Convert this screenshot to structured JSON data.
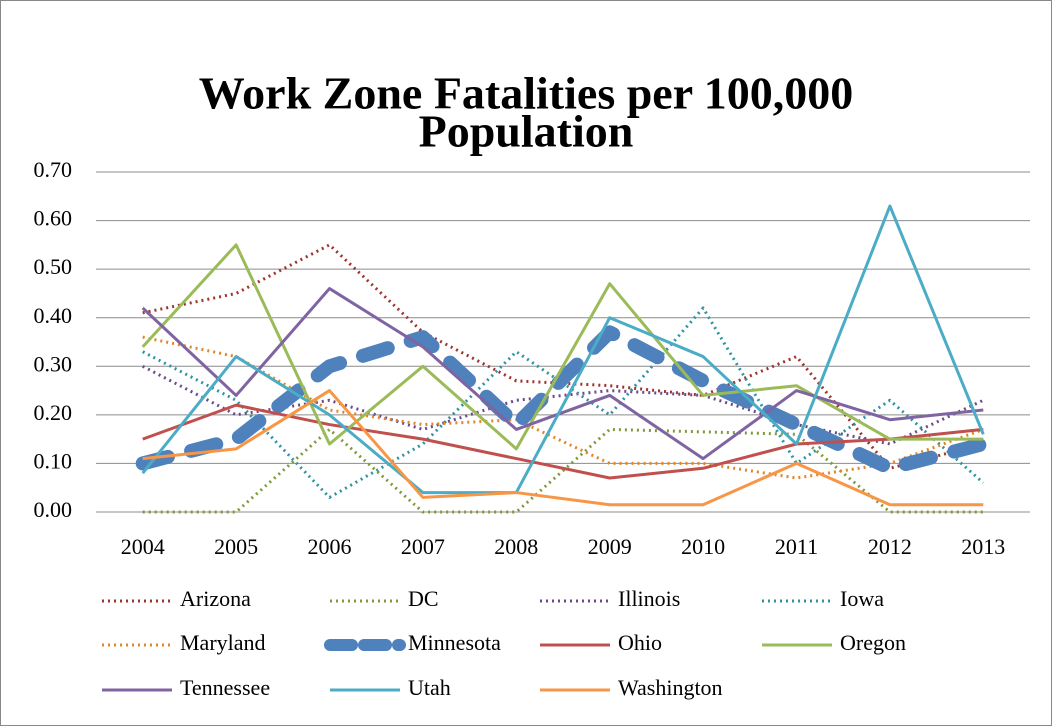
{
  "chart_data": {
    "type": "line",
    "title": [
      "Work Zone Fatalities per 100,000",
      "Population"
    ],
    "categories": [
      "2004",
      "2005",
      "2006",
      "2007",
      "2008",
      "2009",
      "2010",
      "2011",
      "2012",
      "2013"
    ],
    "ylim": [
      0,
      0.7
    ],
    "yticks": [
      {
        "value": 0,
        "label": "0.00"
      },
      {
        "value": 0.1,
        "label": "0.10"
      },
      {
        "value": 0.2,
        "label": "0.20"
      },
      {
        "value": 0.3,
        "label": "0.30"
      },
      {
        "value": 0.4,
        "label": "0.40"
      },
      {
        "value": 0.5,
        "label": "0.50"
      },
      {
        "value": 0.6,
        "label": "0.60"
      },
      {
        "value": 0.7,
        "label": "0.70"
      }
    ],
    "grid": true,
    "legend": "bottom",
    "series": [
      {
        "name": "Arizona",
        "color": "#a0332f",
        "dash": "dotted",
        "values": [
          0.41,
          0.45,
          0.55,
          0.37,
          0.27,
          0.26,
          0.24,
          0.32,
          0.09,
          0.14
        ]
      },
      {
        "name": "DC",
        "color": "#7f9a3b",
        "dash": "dotted",
        "values": [
          0,
          0,
          0.17,
          0,
          0,
          0.17,
          0.165,
          0.16,
          0,
          0
        ]
      },
      {
        "name": "Illinois",
        "color": "#6b4a8a",
        "dash": "dotted",
        "values": [
          0.3,
          0.2,
          0.23,
          0.17,
          0.23,
          0.25,
          0.24,
          0.18,
          0.14,
          0.23
        ]
      },
      {
        "name": "Iowa",
        "color": "#2f93a3",
        "dash": "dotted",
        "values": [
          0.33,
          0.23,
          0.03,
          0.14,
          0.33,
          0.2,
          0.42,
          0.1,
          0.23,
          0.06
        ]
      },
      {
        "name": "Maryland",
        "color": "#e0852a",
        "dash": "dotted",
        "values": [
          0.36,
          0.32,
          0.21,
          0.18,
          0.19,
          0.1,
          0.1,
          0.07,
          0.1,
          0.17
        ]
      },
      {
        "name": "Minnesota",
        "color": "#4f81bd",
        "dash": "dashed",
        "values": [
          0.1,
          0.15,
          0.3,
          0.36,
          0.18,
          0.37,
          0.27,
          0.18,
          0.09,
          0.14
        ]
      },
      {
        "name": "Ohio",
        "color": "#c0504d",
        "dash": "solid",
        "values": [
          0.15,
          0.22,
          0.18,
          0.15,
          0.11,
          0.07,
          0.09,
          0.14,
          0.15,
          0.17
        ]
      },
      {
        "name": "Oregon",
        "color": "#9bbb59",
        "dash": "solid",
        "values": [
          0.34,
          0.55,
          0.14,
          0.3,
          0.13,
          0.47,
          0.24,
          0.26,
          0.15,
          0.15
        ]
      },
      {
        "name": "Tennessee",
        "color": "#8064a2",
        "dash": "solid",
        "values": [
          0.42,
          0.24,
          0.46,
          0.34,
          0.17,
          0.24,
          0.11,
          0.25,
          0.19,
          0.21
        ]
      },
      {
        "name": "Utah",
        "color": "#4bacc6",
        "dash": "solid",
        "values": [
          0.08,
          0.32,
          0.2,
          0.04,
          0.04,
          0.4,
          0.32,
          0.14,
          0.63,
          0.16
        ]
      },
      {
        "name": "Washington",
        "color": "#f79646",
        "dash": "solid",
        "values": [
          0.11,
          0.13,
          0.25,
          0.03,
          0.04,
          0.015,
          0.015,
          0.1,
          0.015,
          0.015
        ]
      }
    ]
  }
}
